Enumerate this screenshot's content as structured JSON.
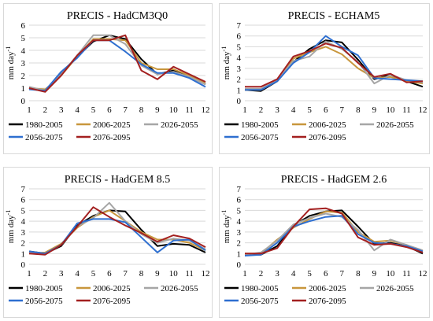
{
  "chart_data": [
    {
      "type": "line",
      "title": "PRECIS - HadCM3Q0",
      "ylabel": "mm day",
      "ylabel_sup": "-1",
      "x": [
        1,
        2,
        3,
        4,
        5,
        6,
        7,
        8,
        9,
        10,
        11,
        12
      ],
      "ylim": [
        0,
        6
      ],
      "yticks": [
        0,
        1,
        2,
        3,
        4,
        5,
        6
      ],
      "series": [
        {
          "name": "1980-2005",
          "color": "#000000",
          "values": [
            1.0,
            0.8,
            2.2,
            3.5,
            4.7,
            5.2,
            4.9,
            3.3,
            2.1,
            2.4,
            1.9,
            1.3
          ]
        },
        {
          "name": "2006-2025",
          "color": "#c8963c",
          "values": [
            1.0,
            0.9,
            2.0,
            3.5,
            4.9,
            4.9,
            4.8,
            3.0,
            2.5,
            2.5,
            2.0,
            1.4
          ]
        },
        {
          "name": "2026-2055",
          "color": "#a6a6a6",
          "values": [
            1.1,
            0.8,
            2.1,
            3.6,
            5.2,
            5.2,
            4.5,
            2.8,
            2.1,
            2.3,
            1.9,
            1.3
          ]
        },
        {
          "name": "2056-2075",
          "color": "#2e6fd0",
          "values": [
            0.9,
            0.8,
            2.3,
            3.4,
            4.8,
            4.8,
            3.9,
            2.9,
            2.2,
            2.2,
            1.8,
            1.1
          ]
        },
        {
          "name": "2076-2095",
          "color": "#a32020",
          "values": [
            1.0,
            0.7,
            2.0,
            3.6,
            4.8,
            4.8,
            5.2,
            2.4,
            1.7,
            2.7,
            2.1,
            1.5
          ]
        }
      ]
    },
    {
      "type": "line",
      "title": "PRECIS - ECHAM5",
      "ylabel": "mm day",
      "ylabel_sup": "-1",
      "x": [
        1,
        2,
        3,
        4,
        5,
        6,
        7,
        8,
        9,
        10,
        11,
        12
      ],
      "ylim": [
        0,
        7
      ],
      "yticks": [
        0,
        1,
        2,
        3,
        4,
        5,
        6,
        7
      ],
      "series": [
        {
          "name": "1980-2005",
          "color": "#000000",
          "values": [
            1.0,
            0.9,
            1.8,
            3.6,
            4.8,
            5.6,
            5.4,
            3.8,
            2.0,
            2.4,
            1.8,
            1.3
          ]
        },
        {
          "name": "2006-2025",
          "color": "#c8963c",
          "values": [
            1.0,
            1.0,
            1.9,
            3.9,
            4.5,
            5.0,
            4.3,
            3.0,
            2.1,
            2.2,
            1.8,
            1.6
          ]
        },
        {
          "name": "2026-2055",
          "color": "#a6a6a6",
          "values": [
            1.1,
            1.1,
            1.9,
            3.7,
            4.1,
            5.5,
            4.8,
            3.6,
            1.6,
            2.4,
            1.9,
            1.7
          ]
        },
        {
          "name": "2056-2075",
          "color": "#2e6fd0",
          "values": [
            1.0,
            1.0,
            1.8,
            3.5,
            4.5,
            6.0,
            5.0,
            4.2,
            2.1,
            2.0,
            1.9,
            1.8
          ]
        },
        {
          "name": "2076-2095",
          "color": "#a32020",
          "values": [
            1.3,
            1.3,
            2.0,
            4.1,
            4.6,
            5.3,
            4.9,
            3.5,
            2.2,
            2.5,
            1.7,
            1.8
          ]
        }
      ]
    },
    {
      "type": "line",
      "title": "PRECIS - HadGEM 8.5",
      "ylabel": "mm day",
      "ylabel_sup": "-1",
      "x": [
        1,
        2,
        3,
        4,
        5,
        6,
        7,
        8,
        9,
        10,
        11,
        12
      ],
      "ylim": [
        0,
        7
      ],
      "yticks": [
        0,
        1,
        2,
        3,
        4,
        5,
        6,
        7
      ],
      "series": [
        {
          "name": "1980-2005",
          "color": "#000000",
          "values": [
            1.2,
            1.0,
            1.7,
            3.6,
            4.5,
            5.0,
            4.9,
            3.2,
            1.7,
            1.9,
            1.8,
            1.1
          ]
        },
        {
          "name": "2006-2025",
          "color": "#c8963c",
          "values": [
            1.0,
            1.1,
            1.9,
            3.4,
            4.4,
            5.0,
            4.0,
            3.0,
            2.3,
            2.3,
            2.0,
            1.3
          ]
        },
        {
          "name": "2026-2055",
          "color": "#a6a6a6",
          "values": [
            1.1,
            1.0,
            1.8,
            3.5,
            4.3,
            5.7,
            4.0,
            2.8,
            2.0,
            2.4,
            2.2,
            1.4
          ]
        },
        {
          "name": "2056-2075",
          "color": "#2e6fd0",
          "values": [
            1.2,
            1.0,
            1.8,
            3.8,
            4.2,
            4.2,
            3.9,
            2.5,
            1.1,
            2.2,
            2.3,
            1.3
          ]
        },
        {
          "name": "2076-2095",
          "color": "#a32020",
          "values": [
            1.0,
            0.9,
            1.8,
            3.5,
            5.3,
            4.4,
            3.6,
            2.9,
            2.1,
            2.7,
            2.4,
            1.6
          ]
        }
      ]
    },
    {
      "type": "line",
      "title": "PRECIS - HadGEM 2.6",
      "ylabel": "mm day",
      "ylabel_sup": "-1",
      "x": [
        1,
        2,
        3,
        4,
        5,
        6,
        7,
        8,
        9,
        10,
        11,
        12
      ],
      "ylim": [
        0,
        7
      ],
      "yticks": [
        0,
        1,
        2,
        3,
        4,
        5,
        6,
        7
      ],
      "series": [
        {
          "name": "1980-2005",
          "color": "#000000",
          "values": [
            0.9,
            0.9,
            1.7,
            3.6,
            4.5,
            4.9,
            5.0,
            3.5,
            1.9,
            2.0,
            1.7,
            1.0
          ]
        },
        {
          "name": "2006-2025",
          "color": "#c8963c",
          "values": [
            1.0,
            1.0,
            2.3,
            3.4,
            4.2,
            4.9,
            4.8,
            3.0,
            2.1,
            2.2,
            1.8,
            1.2
          ]
        },
        {
          "name": "2026-2055",
          "color": "#a6a6a6",
          "values": [
            0.9,
            1.1,
            2.2,
            3.7,
            4.3,
            4.7,
            4.4,
            3.2,
            1.3,
            2.3,
            1.8,
            1.3
          ]
        },
        {
          "name": "2056-2075",
          "color": "#2e6fd0",
          "values": [
            0.8,
            0.9,
            2.0,
            3.5,
            4.0,
            4.4,
            4.5,
            2.8,
            2.0,
            1.9,
            1.7,
            1.2
          ]
        },
        {
          "name": "2076-2095",
          "color": "#a32020",
          "values": [
            1.0,
            1.0,
            1.5,
            3.5,
            5.1,
            5.2,
            4.7,
            2.5,
            1.8,
            1.9,
            1.6,
            1.1
          ]
        }
      ]
    }
  ]
}
